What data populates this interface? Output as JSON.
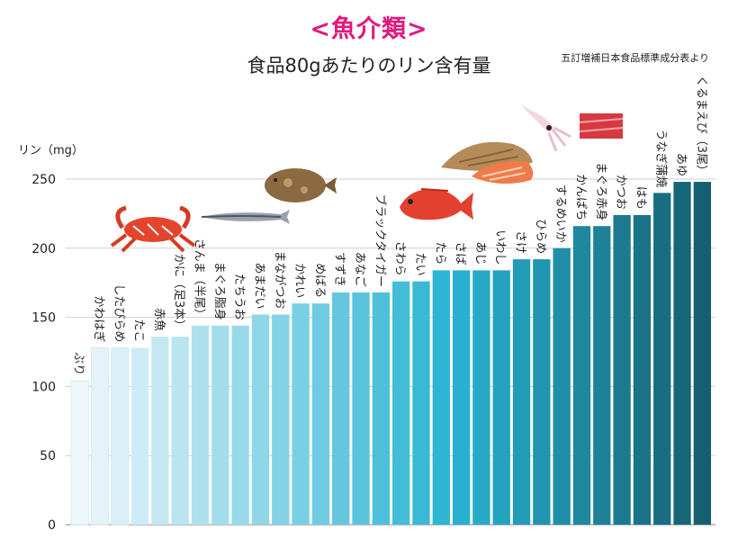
{
  "header": {
    "title": "<魚介類>",
    "subtitle": "食品80gあたりのリン含有量",
    "source": "五訂増補日本食品標準成分表より"
  },
  "chart_data": {
    "type": "bar",
    "ylabel": "リン（mg）",
    "ylim": [
      0,
      250
    ],
    "yticks": [
      0,
      50,
      100,
      150,
      200,
      250
    ],
    "grid": true,
    "categories": [
      "ぶり",
      "かわはぎ",
      "したびらめ",
      "たこ",
      "赤魚",
      "かに（足3本）",
      "さんま（半尾）",
      "まぐろ脂身",
      "たちうお",
      "あまだい",
      "まながつお",
      "かれい",
      "めばる",
      "すずき",
      "あなご",
      "ブラックタイガー",
      "さわら",
      "たい",
      "たら",
      "さば",
      "あじ",
      "いわし",
      "さけ",
      "ひらめ",
      "するめいか",
      "かんぱち",
      "まぐろ赤身",
      "かつお",
      "はも",
      "うなぎ蒲焼",
      "あゆ",
      "くるまえび（3尾）"
    ],
    "values": [
      104,
      128,
      128,
      128,
      136,
      136,
      144,
      144,
      144,
      152,
      152,
      160,
      160,
      168,
      168,
      168,
      176,
      176,
      184,
      184,
      184,
      184,
      192,
      192,
      200,
      216,
      216,
      224,
      224,
      240,
      248,
      248
    ],
    "colors": {
      "start": "#eef7fb",
      "mid": "#28b3d3",
      "end": "#155f70"
    }
  },
  "illustrations": [
    "crab-icon",
    "sanma-fish-icon",
    "flounder-fish-icon",
    "sea-bream-fish-icon",
    "dried-fish-icon",
    "salmon-fillet-icon",
    "squid-icon",
    "tuna-block-icon"
  ]
}
